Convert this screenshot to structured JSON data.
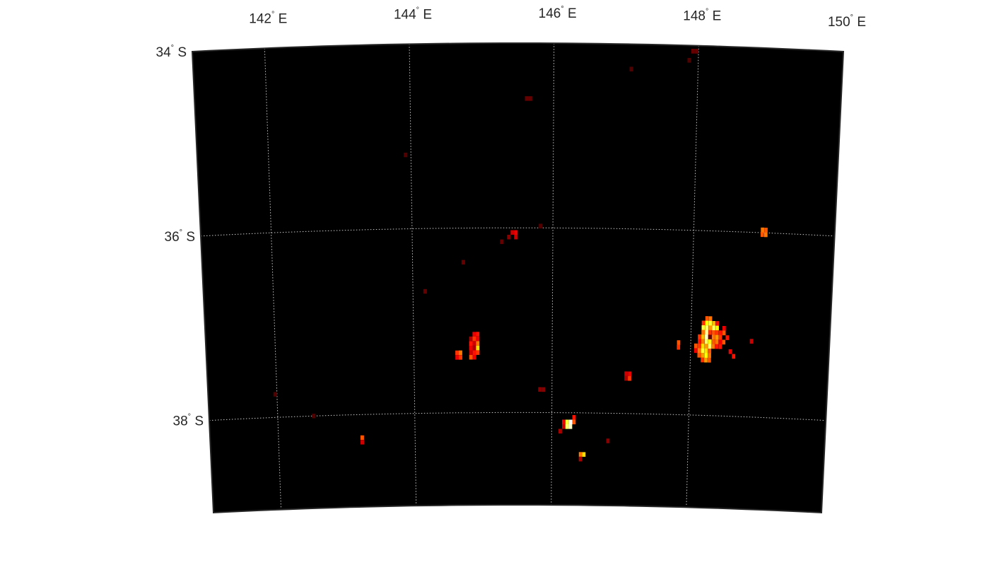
{
  "map": {
    "projection": "conic",
    "colormap": "hot",
    "background_color": "#000000",
    "grid": true,
    "lon_range": [
      141,
      150
    ],
    "lat_range": [
      -39,
      -34
    ],
    "lon_ticks": [
      {
        "value": 142,
        "num": "142",
        "dir": "E"
      },
      {
        "value": 144,
        "num": "144",
        "dir": "E"
      },
      {
        "value": 146,
        "num": "146",
        "dir": "E"
      },
      {
        "value": 148,
        "num": "148",
        "dir": "E"
      },
      {
        "value": 150,
        "num": "150",
        "dir": "E"
      }
    ],
    "lat_ticks": [
      {
        "value": -34,
        "num": "34",
        "dir": "S"
      },
      {
        "value": -36,
        "num": "36",
        "dir": "S"
      },
      {
        "value": -38,
        "num": "38",
        "dir": "S"
      }
    ],
    "degree_symbol": "°"
  },
  "chart_data": {
    "type": "heatmap",
    "x_label": "",
    "y_label": "",
    "xlim": [
      141,
      150
    ],
    "ylim": [
      -39,
      -34
    ],
    "value_scale": "0-1 intensity",
    "cell_size_deg": 0.05,
    "cells": [
      {
        "lon": 147.9,
        "lat": -34.06,
        "v": 0.15
      },
      {
        "lon": 147.95,
        "lat": -34.06,
        "v": 0.15
      },
      {
        "lon": 147.85,
        "lat": -34.16,
        "v": 0.12
      },
      {
        "lon": 147.05,
        "lat": -34.27,
        "v": 0.12
      },
      {
        "lon": 145.6,
        "lat": -34.6,
        "v": 0.15
      },
      {
        "lon": 145.65,
        "lat": -34.6,
        "v": 0.15
      },
      {
        "lon": 143.9,
        "lat": -35.2,
        "v": 0.12
      },
      {
        "lon": 145.4,
        "lat": -36.05,
        "v": 0.3
      },
      {
        "lon": 145.45,
        "lat": -36.05,
        "v": 0.35
      },
      {
        "lon": 145.35,
        "lat": -36.1,
        "v": 0.2
      },
      {
        "lon": 145.45,
        "lat": -36.1,
        "v": 0.3
      },
      {
        "lon": 145.25,
        "lat": -36.15,
        "v": 0.15
      },
      {
        "lon": 145.8,
        "lat": -35.98,
        "v": 0.12
      },
      {
        "lon": 148.95,
        "lat": -35.97,
        "v": 0.55
      },
      {
        "lon": 149.0,
        "lat": -35.97,
        "v": 0.5
      },
      {
        "lon": 148.95,
        "lat": -36.02,
        "v": 0.5
      },
      {
        "lon": 149.0,
        "lat": -36.02,
        "v": 0.55
      },
      {
        "lon": 144.7,
        "lat": -36.37,
        "v": 0.15
      },
      {
        "lon": 144.15,
        "lat": -36.68,
        "v": 0.15
      },
      {
        "lon": 144.85,
        "lat": -37.15,
        "v": 0.35
      },
      {
        "lon": 144.9,
        "lat": -37.15,
        "v": 0.4
      },
      {
        "lon": 144.8,
        "lat": -37.2,
        "v": 0.25
      },
      {
        "lon": 144.85,
        "lat": -37.2,
        "v": 0.45
      },
      {
        "lon": 144.9,
        "lat": -37.2,
        "v": 0.35
      },
      {
        "lon": 144.8,
        "lat": -37.25,
        "v": 0.4
      },
      {
        "lon": 144.85,
        "lat": -37.25,
        "v": 0.3
      },
      {
        "lon": 144.9,
        "lat": -37.25,
        "v": 0.55
      },
      {
        "lon": 144.8,
        "lat": -37.3,
        "v": 0.35
      },
      {
        "lon": 144.85,
        "lat": -37.3,
        "v": 0.25
      },
      {
        "lon": 144.9,
        "lat": -37.3,
        "v": 0.7
      },
      {
        "lon": 144.6,
        "lat": -37.35,
        "v": 0.45
      },
      {
        "lon": 144.65,
        "lat": -37.35,
        "v": 0.55
      },
      {
        "lon": 144.8,
        "lat": -37.35,
        "v": 0.3
      },
      {
        "lon": 144.85,
        "lat": -37.35,
        "v": 0.4
      },
      {
        "lon": 144.9,
        "lat": -37.35,
        "v": 0.45
      },
      {
        "lon": 144.6,
        "lat": -37.4,
        "v": 0.35
      },
      {
        "lon": 144.65,
        "lat": -37.4,
        "v": 0.45
      },
      {
        "lon": 144.8,
        "lat": -37.4,
        "v": 0.5
      },
      {
        "lon": 144.85,
        "lat": -37.4,
        "v": 0.35
      },
      {
        "lon": 148.2,
        "lat": -36.95,
        "v": 0.5
      },
      {
        "lon": 148.25,
        "lat": -36.95,
        "v": 0.55
      },
      {
        "lon": 148.15,
        "lat": -37.0,
        "v": 0.45
      },
      {
        "lon": 148.2,
        "lat": -37.0,
        "v": 0.75
      },
      {
        "lon": 148.25,
        "lat": -37.0,
        "v": 0.8
      },
      {
        "lon": 148.3,
        "lat": -37.0,
        "v": 0.65
      },
      {
        "lon": 148.35,
        "lat": -37.0,
        "v": 0.4
      },
      {
        "lon": 148.15,
        "lat": -37.05,
        "v": 0.8
      },
      {
        "lon": 148.2,
        "lat": -37.05,
        "v": 0.85
      },
      {
        "lon": 148.25,
        "lat": -37.05,
        "v": 0.6
      },
      {
        "lon": 148.3,
        "lat": -37.05,
        "v": 0.85
      },
      {
        "lon": 148.35,
        "lat": -37.05,
        "v": 0.75
      },
      {
        "lon": 148.45,
        "lat": -37.05,
        "v": 0.35
      },
      {
        "lon": 148.15,
        "lat": -37.1,
        "v": 0.55
      },
      {
        "lon": 148.2,
        "lat": -37.1,
        "v": 0.9
      },
      {
        "lon": 148.25,
        "lat": -37.1,
        "v": 0.45
      },
      {
        "lon": 148.3,
        "lat": -37.1,
        "v": 0.5
      },
      {
        "lon": 148.35,
        "lat": -37.1,
        "v": 0.45
      },
      {
        "lon": 148.4,
        "lat": -37.1,
        "v": 0.4
      },
      {
        "lon": 148.45,
        "lat": -37.1,
        "v": 0.5
      },
      {
        "lon": 148.1,
        "lat": -37.15,
        "v": 0.45
      },
      {
        "lon": 148.15,
        "lat": -37.15,
        "v": 0.65
      },
      {
        "lon": 148.2,
        "lat": -37.15,
        "v": 0.95
      },
      {
        "lon": 148.25,
        "lat": -37.15,
        "v": 0.15
      },
      {
        "lon": 148.3,
        "lat": -37.15,
        "v": 0.55
      },
      {
        "lon": 148.35,
        "lat": -37.15,
        "v": 0.6
      },
      {
        "lon": 148.4,
        "lat": -37.15,
        "v": 0.45
      },
      {
        "lon": 148.5,
        "lat": -37.15,
        "v": 0.4
      },
      {
        "lon": 148.1,
        "lat": -37.2,
        "v": 0.4
      },
      {
        "lon": 148.15,
        "lat": -37.2,
        "v": 0.55
      },
      {
        "lon": 148.2,
        "lat": -37.2,
        "v": 0.85
      },
      {
        "lon": 148.25,
        "lat": -37.2,
        "v": 0.75
      },
      {
        "lon": 148.3,
        "lat": -37.2,
        "v": 0.5
      },
      {
        "lon": 148.35,
        "lat": -37.2,
        "v": 0.55
      },
      {
        "lon": 148.4,
        "lat": -37.2,
        "v": 0.35
      },
      {
        "lon": 148.45,
        "lat": -37.2,
        "v": 0.5
      },
      {
        "lon": 148.05,
        "lat": -37.25,
        "v": 0.5
      },
      {
        "lon": 148.1,
        "lat": -37.25,
        "v": 0.45
      },
      {
        "lon": 148.15,
        "lat": -37.25,
        "v": 0.7
      },
      {
        "lon": 148.2,
        "lat": -37.25,
        "v": 0.6
      },
      {
        "lon": 148.25,
        "lat": -37.25,
        "v": 0.85
      },
      {
        "lon": 148.3,
        "lat": -37.25,
        "v": 0.55
      },
      {
        "lon": 148.35,
        "lat": -37.25,
        "v": 0.4
      },
      {
        "lon": 148.4,
        "lat": -37.25,
        "v": 0.4
      },
      {
        "lon": 148.05,
        "lat": -37.3,
        "v": 0.35
      },
      {
        "lon": 148.1,
        "lat": -37.3,
        "v": 0.55
      },
      {
        "lon": 148.15,
        "lat": -37.3,
        "v": 0.8
      },
      {
        "lon": 148.2,
        "lat": -37.3,
        "v": 0.7
      },
      {
        "lon": 148.25,
        "lat": -37.3,
        "v": 0.5
      },
      {
        "lon": 148.55,
        "lat": -37.3,
        "v": 0.35
      },
      {
        "lon": 148.1,
        "lat": -37.35,
        "v": 0.5
      },
      {
        "lon": 148.15,
        "lat": -37.35,
        "v": 0.6
      },
      {
        "lon": 148.2,
        "lat": -37.35,
        "v": 0.75
      },
      {
        "lon": 148.25,
        "lat": -37.35,
        "v": 0.55
      },
      {
        "lon": 148.6,
        "lat": -37.35,
        "v": 0.4
      },
      {
        "lon": 148.15,
        "lat": -37.4,
        "v": 0.45
      },
      {
        "lon": 148.2,
        "lat": -37.4,
        "v": 0.6
      },
      {
        "lon": 148.25,
        "lat": -37.4,
        "v": 0.5
      },
      {
        "lon": 147.8,
        "lat": -37.22,
        "v": 0.5
      },
      {
        "lon": 147.8,
        "lat": -37.27,
        "v": 0.45
      },
      {
        "lon": 148.85,
        "lat": -37.18,
        "v": 0.3
      },
      {
        "lon": 147.05,
        "lat": -37.57,
        "v": 0.3
      },
      {
        "lon": 147.1,
        "lat": -37.57,
        "v": 0.35
      },
      {
        "lon": 147.05,
        "lat": -37.62,
        "v": 0.25
      },
      {
        "lon": 147.1,
        "lat": -37.62,
        "v": 0.45
      },
      {
        "lon": 145.8,
        "lat": -37.75,
        "v": 0.2
      },
      {
        "lon": 145.85,
        "lat": -37.75,
        "v": 0.2
      },
      {
        "lon": 141.95,
        "lat": -37.75,
        "v": 0.12
      },
      {
        "lon": 142.5,
        "lat": -38.0,
        "v": 0.12
      },
      {
        "lon": 146.3,
        "lat": -38.05,
        "v": 0.4
      },
      {
        "lon": 146.15,
        "lat": -38.1,
        "v": 0.35
      },
      {
        "lon": 146.2,
        "lat": -38.1,
        "v": 0.8
      },
      {
        "lon": 146.25,
        "lat": -38.1,
        "v": 1.0
      },
      {
        "lon": 146.3,
        "lat": -38.1,
        "v": 0.5
      },
      {
        "lon": 146.15,
        "lat": -38.15,
        "v": 0.3
      },
      {
        "lon": 146.2,
        "lat": -38.15,
        "v": 0.85
      },
      {
        "lon": 146.25,
        "lat": -38.15,
        "v": 0.95
      },
      {
        "lon": 146.1,
        "lat": -38.2,
        "v": 0.25
      },
      {
        "lon": 143.2,
        "lat": -38.25,
        "v": 0.5
      },
      {
        "lon": 143.2,
        "lat": -38.3,
        "v": 0.3
      },
      {
        "lon": 146.8,
        "lat": -38.3,
        "v": 0.2
      },
      {
        "lon": 146.4,
        "lat": -38.45,
        "v": 0.55
      },
      {
        "lon": 146.45,
        "lat": -38.45,
        "v": 0.7
      },
      {
        "lon": 146.4,
        "lat": -38.5,
        "v": 0.25
      }
    ]
  }
}
